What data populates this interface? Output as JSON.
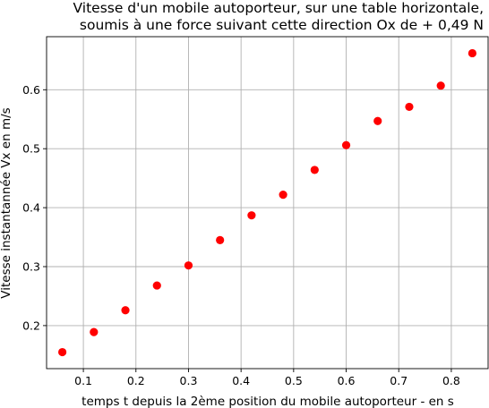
{
  "chart_data": {
    "type": "scatter",
    "title_lines": [
      "Vitesse d'un mobile autoporteur, sur une table horizontale,",
      "soumis à une force suivant cette direction Ox de + 0,49 N"
    ],
    "xlabel": "temps t depuis la 2ème position du mobile autoporteur - en s",
    "ylabel": "Vitesse instantannée Vx en m/s",
    "xlim": [
      0.03,
      0.87
    ],
    "ylim": [
      0.127,
      0.69
    ],
    "xticks": [
      "0.1",
      "0.2",
      "0.3",
      "0.4",
      "0.5",
      "0.6",
      "0.7",
      "0.8"
    ],
    "yticks": [
      "0.2",
      "0.3",
      "0.4",
      "0.5",
      "0.6"
    ],
    "grid": true,
    "marker_color": "#ff0000",
    "grid_color": "#b0b0b0",
    "points": [
      {
        "x": 0.06,
        "y": 0.155
      },
      {
        "x": 0.12,
        "y": 0.189
      },
      {
        "x": 0.18,
        "y": 0.226
      },
      {
        "x": 0.24,
        "y": 0.268
      },
      {
        "x": 0.3,
        "y": 0.302
      },
      {
        "x": 0.36,
        "y": 0.345
      },
      {
        "x": 0.42,
        "y": 0.387
      },
      {
        "x": 0.48,
        "y": 0.422
      },
      {
        "x": 0.54,
        "y": 0.464
      },
      {
        "x": 0.6,
        "y": 0.506
      },
      {
        "x": 0.66,
        "y": 0.547
      },
      {
        "x": 0.72,
        "y": 0.571
      },
      {
        "x": 0.78,
        "y": 0.607
      },
      {
        "x": 0.84,
        "y": 0.662
      }
    ]
  }
}
